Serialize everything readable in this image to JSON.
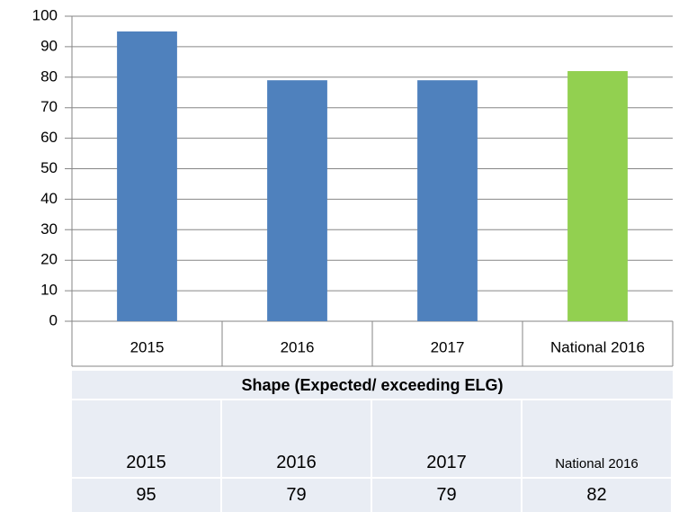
{
  "chart_data": {
    "type": "bar",
    "categories": [
      "2015",
      "2016",
      "2017",
      "National 2016"
    ],
    "values": [
      95,
      79,
      79,
      82
    ],
    "colors": [
      "#4f81bd",
      "#4f81bd",
      "#4f81bd",
      "#92d050"
    ],
    "ylim": [
      0,
      100
    ],
    "yticks": [
      0,
      10,
      20,
      30,
      40,
      50,
      60,
      70,
      80,
      90,
      100
    ],
    "grid": true
  },
  "table": {
    "title": "Shape (Expected/ exceeding ELG)"
  }
}
